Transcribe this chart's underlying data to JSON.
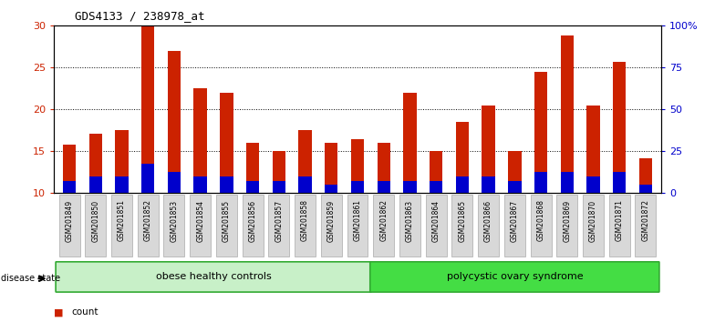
{
  "title": "GDS4133 / 238978_at",
  "categories": [
    "GSM201849",
    "GSM201850",
    "GSM201851",
    "GSM201852",
    "GSM201853",
    "GSM201854",
    "GSM201855",
    "GSM201856",
    "GSM201857",
    "GSM201858",
    "GSM201859",
    "GSM201861",
    "GSM201862",
    "GSM201863",
    "GSM201864",
    "GSM201865",
    "GSM201866",
    "GSM201867",
    "GSM201868",
    "GSM201869",
    "GSM201870",
    "GSM201871",
    "GSM201872"
  ],
  "count_values": [
    15.8,
    17.1,
    17.5,
    30.0,
    27.0,
    22.5,
    22.0,
    16.0,
    15.0,
    17.5,
    16.0,
    16.5,
    16.0,
    22.0,
    15.0,
    18.5,
    20.5,
    15.0,
    24.5,
    28.8,
    20.5,
    25.7,
    14.2
  ],
  "percentile_values": [
    11.5,
    12.0,
    12.0,
    13.5,
    12.5,
    12.0,
    12.0,
    11.5,
    11.5,
    12.0,
    11.0,
    11.5,
    11.5,
    11.5,
    11.5,
    12.0,
    12.0,
    11.5,
    12.5,
    12.5,
    12.0,
    12.5,
    11.0
  ],
  "bar_bottom": 10.0,
  "groups": [
    {
      "label": "obese healthy controls",
      "start": 0,
      "end": 12,
      "color": "#c8f0c8"
    },
    {
      "label": "polycystic ovary syndrome",
      "start": 12,
      "end": 23,
      "color": "#44dd44"
    }
  ],
  "disease_label": "disease state",
  "count_color": "#CC2200",
  "percentile_color": "#0000CC",
  "bar_width": 0.5,
  "ylim_left": [
    10,
    30
  ],
  "ylim_right": [
    0,
    100
  ],
  "yticks_left": [
    10,
    15,
    20,
    25,
    30
  ],
  "yticks_right": [
    0,
    25,
    50,
    75,
    100
  ],
  "ytick_labels_right": [
    "0",
    "25",
    "50",
    "75",
    "100%"
  ],
  "grid_dotted_at": [
    15,
    20,
    25
  ],
  "bg_color": "#ffffff",
  "left_tick_color": "#CC2200",
  "right_tick_color": "#0000CC",
  "tick_label_bg": "#d8d8d8"
}
